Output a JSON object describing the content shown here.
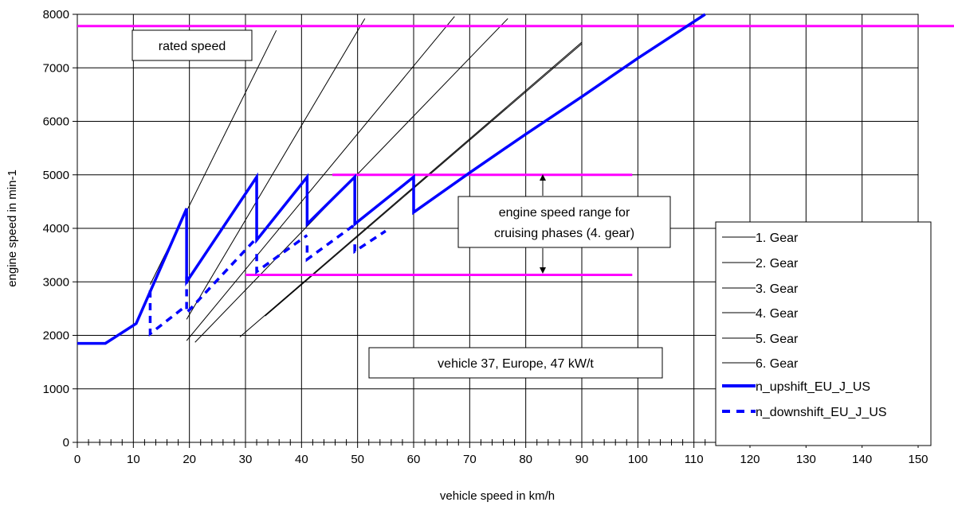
{
  "chart_data": {
    "type": "line",
    "xlabel": "vehicle speed in km/h",
    "ylabel": "engine speed in min-1",
    "xlim": [
      0,
      150
    ],
    "ylim": [
      0,
      8000
    ],
    "x_ticks": [
      "0",
      "10",
      "20",
      "30",
      "40",
      "50",
      "60",
      "70",
      "80",
      "90",
      "100",
      "110",
      "120",
      "130",
      "140",
      "150"
    ],
    "y_ticks": [
      "0",
      "1000",
      "2000",
      "3000",
      "4000",
      "5000",
      "6000",
      "7000",
      "8000"
    ],
    "grid": true,
    "legend_position": "right",
    "colors": {
      "gear": "#000000",
      "shift": "#0000ff",
      "reference": "#ff00ff"
    },
    "series": [
      {
        "name": "1. Gear",
        "style": "thin-black",
        "x": [
          13,
          35.5
        ],
        "y": [
          2950,
          7700
        ]
      },
      {
        "name": "2. Gear",
        "style": "thin-black",
        "x": [
          19.5,
          51.3
        ],
        "y": [
          2300,
          7920
        ]
      },
      {
        "name": "3. Gear",
        "style": "thin-black",
        "x": [
          19.5,
          67.3
        ],
        "y": [
          1900,
          7960
        ]
      },
      {
        "name": "4. Gear",
        "style": "thin-black",
        "x": [
          21,
          76.8
        ],
        "y": [
          1870,
          7920
        ]
      },
      {
        "name": "5. Gear",
        "style": "thin-black",
        "x": [
          29,
          90
        ],
        "y": [
          1970,
          7480
        ]
      },
      {
        "name": "6. Gear",
        "style": "thin-black",
        "x": [
          33.5,
          90
        ],
        "y": [
          2360,
          7450
        ]
      },
      {
        "name": "n_upshift_EU_J_US",
        "style": "thick-blue",
        "x": [
          0,
          5,
          10.5,
          19.5,
          19.5,
          32,
          32,
          41,
          41,
          49.5,
          49.5,
          60,
          60,
          70,
          80,
          90,
          100,
          112
        ],
        "y": [
          1850,
          1850,
          2220,
          4370,
          3000,
          4960,
          3780,
          4960,
          4080,
          4960,
          4080,
          4960,
          4300,
          5040,
          5760,
          6460,
          7180,
          8000
        ]
      },
      {
        "name": "n_downshift_EU_J_US",
        "style": "dashed-blue",
        "segments": [
          {
            "x": [
              13,
              13,
              19.5
            ],
            "y": [
              2840,
              2030,
              2560
            ]
          },
          {
            "x": [
              19.5,
              19.5,
              32
            ],
            "y": [
              3100,
              2420,
              3820
            ]
          },
          {
            "x": [
              32,
              32,
              41
            ],
            "y": [
              3520,
              3190,
              3870
            ]
          },
          {
            "x": [
              41,
              41,
              49.5
            ],
            "y": [
              3680,
              3420,
              4070
            ]
          },
          {
            "x": [
              49.5,
              49.5,
              55
            ],
            "y": [
              3700,
              3570,
              3950
            ]
          }
        ]
      }
    ],
    "reference_lines": [
      {
        "label": "rated speed",
        "y": 7780,
        "x": [
          0,
          150
        ]
      },
      {
        "y": 5000,
        "x": [
          45.5,
          99
        ]
      },
      {
        "y": 3130,
        "x": [
          30,
          99
        ]
      }
    ],
    "annotations": {
      "rated_speed": "rated speed",
      "cruising_range_line1": "engine speed range for",
      "cruising_range_line2": "cruising phases (4. gear)",
      "vehicle": "vehicle 37, Europe, 47 kW/t"
    }
  }
}
